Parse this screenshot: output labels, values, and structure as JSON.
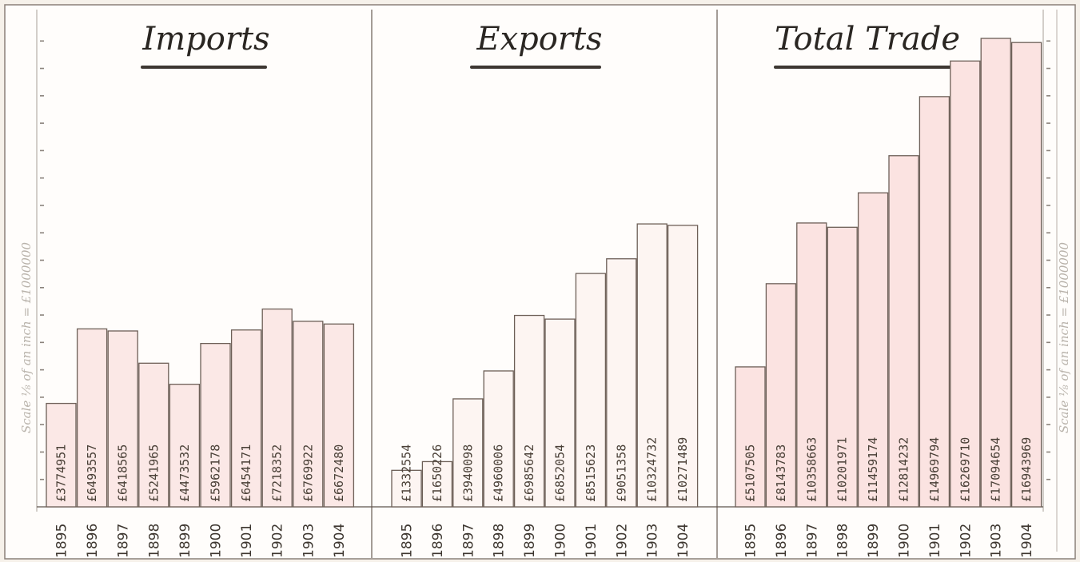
{
  "chart_data": [
    {
      "type": "bar",
      "title": "Imports",
      "categories": [
        "1895",
        "1896",
        "1897",
        "1898",
        "1899",
        "1900",
        "1901",
        "1902",
        "1903",
        "1904"
      ],
      "value_labels": [
        "£3774951",
        "£6493557",
        "£6418565",
        "£5241965",
        "£4473532",
        "£5962178",
        "£6454171",
        "£7218352",
        "£6769922",
        "£6672480"
      ],
      "values": [
        3774951,
        6493557,
        6418565,
        5241965,
        4473532,
        5962178,
        6454171,
        7218352,
        6769922,
        6672480
      ],
      "ylim": [
        0,
        18000000
      ],
      "bar_fill": "#fbe8e6"
    },
    {
      "type": "bar",
      "title": "Exports",
      "categories": [
        "1895",
        "1896",
        "1897",
        "1898",
        "1899",
        "1900",
        "1901",
        "1902",
        "1903",
        "1904"
      ],
      "value_labels": [
        "£1332554",
        "£1650226",
        "£3940098",
        "£4960006",
        "£6985642",
        "£6852054",
        "£8515623",
        "£9051358",
        "£10324732",
        "£10271489"
      ],
      "values": [
        1332554,
        1650226,
        3940098,
        4960006,
        6985642,
        6852054,
        8515623,
        9051358,
        10324732,
        10271489
      ],
      "ylim": [
        0,
        18000000
      ],
      "bar_fill": "#fdf5f2"
    },
    {
      "type": "bar",
      "title": "Total Trade",
      "categories": [
        "1895",
        "1896",
        "1897",
        "1898",
        "1899",
        "1900",
        "1901",
        "1902",
        "1903",
        "1904"
      ],
      "value_labels": [
        "£5107505",
        "£8143783",
        "£10358663",
        "£10201971",
        "£11459174",
        "£12814232",
        "£14969794",
        "£16269710",
        "£17094654",
        "£16943969"
      ],
      "values": [
        5107505,
        8143783,
        10358663,
        10201971,
        11459174,
        12814232,
        14969794,
        16269710,
        17094654,
        16943969
      ],
      "ylim": [
        0,
        18000000
      ],
      "bar_fill": "#fbe3e1"
    }
  ],
  "scale_left": "Scale ⅛ of an inch = £1000000",
  "scale_right": "Scale ⅛ of an inch = £1000000",
  "colors": {
    "paper": "#fffdfb",
    "ink": "#3a332d",
    "bar_outline": "#6d5f57",
    "title_underline": "#3d3732"
  }
}
